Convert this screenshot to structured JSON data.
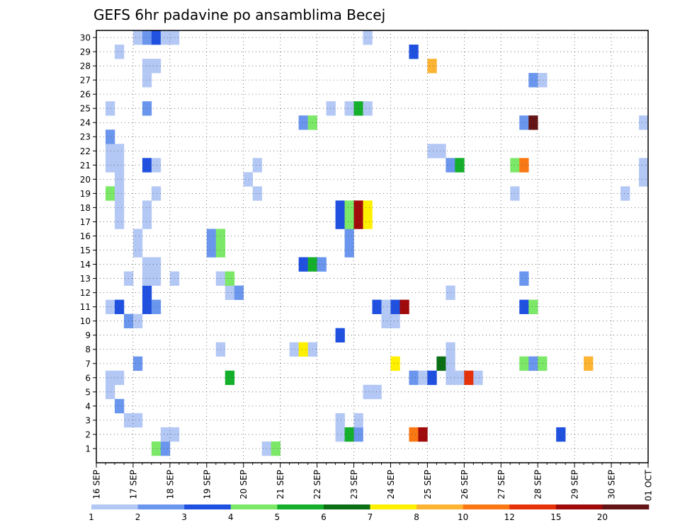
{
  "chart_data": {
    "type": "heatmap",
    "title": "GEFS 6hr padavine po ansamblima Becej",
    "xlabel": "",
    "ylabel": "",
    "x_ticks": [
      "16 SEP",
      "17 SEP",
      "18 SEP",
      "19 SEP",
      "20 SEP",
      "21 SEP",
      "22 SEP",
      "23 SEP",
      "24 SEP",
      "25 SEP",
      "26 SEP",
      "27 SEP",
      "28 SEP",
      "29 SEP",
      "30 SEP",
      "01 OCT"
    ],
    "y_ticks": [
      "1",
      "2",
      "3",
      "4",
      "5",
      "6",
      "7",
      "8",
      "9",
      "10",
      "11",
      "12",
      "13",
      "14",
      "15",
      "16",
      "17",
      "18",
      "19",
      "20",
      "21",
      "22",
      "23",
      "24",
      "25",
      "26",
      "27",
      "28",
      "29",
      "30"
    ],
    "x_range": [
      "16 SEP 00Z",
      "01 OCT 00Z"
    ],
    "x_step": "6hr",
    "y_range": [
      1,
      30
    ],
    "grid": true,
    "color_scale": {
      "boundaries": [
        "1",
        "2",
        "3",
        "4",
        "5",
        "6",
        "7",
        "8",
        "10",
        "12",
        "15",
        "20"
      ],
      "colors": [
        "#b4c8f5",
        "#6b96ee",
        "#1f50e0",
        "#7ce868",
        "#14b02c",
        "#0a6e14",
        "#fff000",
        "#fcb432",
        "#fa7814",
        "#e6320a",
        "#a00a0a",
        "#641414"
      ]
    },
    "values": [
      {
        "ens": 1,
        "t": "17 SEP 18Z",
        "v": 4.4
      },
      {
        "ens": 1,
        "t": "18 SEP 00Z",
        "v": 2.5
      },
      {
        "ens": 1,
        "t": "20 SEP 18Z",
        "v": 1.5
      },
      {
        "ens": 1,
        "t": "21 SEP 00Z",
        "v": 4.4
      },
      {
        "ens": 2,
        "t": "18 SEP 00Z",
        "v": 1.5
      },
      {
        "ens": 2,
        "t": "18 SEP 06Z",
        "v": 1.5
      },
      {
        "ens": 2,
        "t": "22 SEP 18Z",
        "v": 1.5
      },
      {
        "ens": 2,
        "t": "23 SEP 00Z",
        "v": 5.5
      },
      {
        "ens": 2,
        "t": "23 SEP 06Z",
        "v": 2.5
      },
      {
        "ens": 2,
        "t": "24 SEP 18Z",
        "v": 11
      },
      {
        "ens": 2,
        "t": "25 SEP 00Z",
        "v": 17
      },
      {
        "ens": 2,
        "t": "28 SEP 18Z",
        "v": 3.5
      },
      {
        "ens": 3,
        "t": "17 SEP 00Z",
        "v": 1.5
      },
      {
        "ens": 3,
        "t": "17 SEP 06Z",
        "v": 1.5
      },
      {
        "ens": 3,
        "t": "22 SEP 18Z",
        "v": 1.5
      },
      {
        "ens": 3,
        "t": "23 SEP 06Z",
        "v": 1.5
      },
      {
        "ens": 4,
        "t": "16 SEP 18Z",
        "v": 2.5
      },
      {
        "ens": 5,
        "t": "16 SEP 12Z",
        "v": 1.5
      },
      {
        "ens": 5,
        "t": "23 SEP 12Z",
        "v": 1.5
      },
      {
        "ens": 5,
        "t": "23 SEP 18Z",
        "v": 1.5
      },
      {
        "ens": 6,
        "t": "16 SEP 12Z",
        "v": 1.5
      },
      {
        "ens": 6,
        "t": "16 SEP 18Z",
        "v": 1.5
      },
      {
        "ens": 6,
        "t": "19 SEP 18Z",
        "v": 5.5
      },
      {
        "ens": 6,
        "t": "24 SEP 18Z",
        "v": 2.5
      },
      {
        "ens": 6,
        "t": "25 SEP 00Z",
        "v": 1.5
      },
      {
        "ens": 6,
        "t": "25 SEP 06Z",
        "v": 3.5
      },
      {
        "ens": 6,
        "t": "25 SEP 18Z",
        "v": 1.5
      },
      {
        "ens": 6,
        "t": "26 SEP 00Z",
        "v": 1.5
      },
      {
        "ens": 6,
        "t": "26 SEP 06Z",
        "v": 13
      },
      {
        "ens": 6,
        "t": "26 SEP 12Z",
        "v": 1.5
      },
      {
        "ens": 7,
        "t": "17 SEP 06Z",
        "v": 2.5
      },
      {
        "ens": 7,
        "t": "24 SEP 06Z",
        "v": 7.5
      },
      {
        "ens": 7,
        "t": "25 SEP 12Z",
        "v": 6.5
      },
      {
        "ens": 7,
        "t": "25 SEP 18Z",
        "v": 1.5
      },
      {
        "ens": 7,
        "t": "27 SEP 18Z",
        "v": 4.5
      },
      {
        "ens": 7,
        "t": "28 SEP 00Z",
        "v": 2.5
      },
      {
        "ens": 7,
        "t": "28 SEP 06Z",
        "v": 4.5
      },
      {
        "ens": 7,
        "t": "29 SEP 12Z",
        "v": 9
      },
      {
        "ens": 8,
        "t": "19 SEP 12Z",
        "v": 1.5
      },
      {
        "ens": 8,
        "t": "21 SEP 12Z",
        "v": 1.5
      },
      {
        "ens": 8,
        "t": "21 SEP 18Z",
        "v": 7.5
      },
      {
        "ens": 8,
        "t": "22 SEP 00Z",
        "v": 1.5
      },
      {
        "ens": 8,
        "t": "25 SEP 18Z",
        "v": 1.5
      },
      {
        "ens": 9,
        "t": "22 SEP 18Z",
        "v": 3.5
      },
      {
        "ens": 10,
        "t": "17 SEP 00Z",
        "v": 2.5
      },
      {
        "ens": 10,
        "t": "17 SEP 06Z",
        "v": 1.5
      },
      {
        "ens": 10,
        "t": "24 SEP 00Z",
        "v": 1.5
      },
      {
        "ens": 10,
        "t": "24 SEP 06Z",
        "v": 1.5
      },
      {
        "ens": 11,
        "t": "16 SEP 12Z",
        "v": 1.5
      },
      {
        "ens": 11,
        "t": "16 SEP 18Z",
        "v": 3.5
      },
      {
        "ens": 11,
        "t": "17 SEP 12Z",
        "v": 3.5
      },
      {
        "ens": 11,
        "t": "17 SEP 18Z",
        "v": 2.5
      },
      {
        "ens": 11,
        "t": "23 SEP 18Z",
        "v": 3.5
      },
      {
        "ens": 11,
        "t": "24 SEP 00Z",
        "v": 1.5
      },
      {
        "ens": 11,
        "t": "24 SEP 06Z",
        "v": 3.5
      },
      {
        "ens": 11,
        "t": "24 SEP 12Z",
        "v": 17
      },
      {
        "ens": 11,
        "t": "27 SEP 18Z",
        "v": 3.5
      },
      {
        "ens": 11,
        "t": "28 SEP 00Z",
        "v": 4.5
      },
      {
        "ens": 12,
        "t": "17 SEP 12Z",
        "v": 3.5
      },
      {
        "ens": 12,
        "t": "19 SEP 18Z",
        "v": 1.5
      },
      {
        "ens": 12,
        "t": "20 SEP 00Z",
        "v": 2.5
      },
      {
        "ens": 12,
        "t": "25 SEP 18Z",
        "v": 1.5
      },
      {
        "ens": 13,
        "t": "17 SEP 00Z",
        "v": 1.5
      },
      {
        "ens": 13,
        "t": "17 SEP 12Z",
        "v": 1.5
      },
      {
        "ens": 13,
        "t": "17 SEP 18Z",
        "v": 1.5
      },
      {
        "ens": 13,
        "t": "18 SEP 06Z",
        "v": 1.5
      },
      {
        "ens": 13,
        "t": "19 SEP 12Z",
        "v": 1.5
      },
      {
        "ens": 13,
        "t": "19 SEP 18Z",
        "v": 4.5
      },
      {
        "ens": 13,
        "t": "27 SEP 18Z",
        "v": 2.5
      },
      {
        "ens": 14,
        "t": "17 SEP 12Z",
        "v": 1.5
      },
      {
        "ens": 14,
        "t": "17 SEP 18Z",
        "v": 1.5
      },
      {
        "ens": 14,
        "t": "21 SEP 18Z",
        "v": 3.5
      },
      {
        "ens": 14,
        "t": "22 SEP 00Z",
        "v": 5.5
      },
      {
        "ens": 14,
        "t": "22 SEP 06Z",
        "v": 2.5
      },
      {
        "ens": 15,
        "t": "17 SEP 06Z",
        "v": 1.5
      },
      {
        "ens": 15,
        "t": "19 SEP 06Z",
        "v": 2.5
      },
      {
        "ens": 15,
        "t": "19 SEP 12Z",
        "v": 4.5
      },
      {
        "ens": 15,
        "t": "23 SEP 00Z",
        "v": 2.5
      },
      {
        "ens": 16,
        "t": "17 SEP 06Z",
        "v": 1.5
      },
      {
        "ens": 16,
        "t": "19 SEP 06Z",
        "v": 2.5
      },
      {
        "ens": 16,
        "t": "19 SEP 12Z",
        "v": 4.5
      },
      {
        "ens": 16,
        "t": "23 SEP 00Z",
        "v": 2.5
      },
      {
        "ens": 17,
        "t": "16 SEP 18Z",
        "v": 1.5
      },
      {
        "ens": 17,
        "t": "17 SEP 12Z",
        "v": 1.5
      },
      {
        "ens": 17,
        "t": "22 SEP 18Z",
        "v": 3.5
      },
      {
        "ens": 17,
        "t": "23 SEP 00Z",
        "v": 4.5
      },
      {
        "ens": 17,
        "t": "23 SEP 06Z",
        "v": 17
      },
      {
        "ens": 17,
        "t": "23 SEP 12Z",
        "v": 7.5
      },
      {
        "ens": 18,
        "t": "16 SEP 18Z",
        "v": 1.5
      },
      {
        "ens": 18,
        "t": "17 SEP 12Z",
        "v": 1.5
      },
      {
        "ens": 18,
        "t": "22 SEP 18Z",
        "v": 3.5
      },
      {
        "ens": 18,
        "t": "23 SEP 00Z",
        "v": 4.5
      },
      {
        "ens": 18,
        "t": "23 SEP 06Z",
        "v": 17
      },
      {
        "ens": 18,
        "t": "23 SEP 12Z",
        "v": 7.5
      },
      {
        "ens": 19,
        "t": "16 SEP 12Z",
        "v": 4.5
      },
      {
        "ens": 19,
        "t": "16 SEP 18Z",
        "v": 1.5
      },
      {
        "ens": 19,
        "t": "17 SEP 18Z",
        "v": 1.5
      },
      {
        "ens": 19,
        "t": "20 SEP 12Z",
        "v": 1.5
      },
      {
        "ens": 19,
        "t": "27 SEP 12Z",
        "v": 1.5
      },
      {
        "ens": 19,
        "t": "30 SEP 12Z",
        "v": 1.5
      },
      {
        "ens": 20,
        "t": "16 SEP 18Z",
        "v": 1.5
      },
      {
        "ens": 20,
        "t": "20 SEP 06Z",
        "v": 1.5
      },
      {
        "ens": 20,
        "t": "01 OCT 00Z",
        "v": 1.5
      },
      {
        "ens": 21,
        "t": "16 SEP 12Z",
        "v": 1.5
      },
      {
        "ens": 21,
        "t": "16 SEP 18Z",
        "v": 1.5
      },
      {
        "ens": 21,
        "t": "17 SEP 12Z",
        "v": 3.5
      },
      {
        "ens": 21,
        "t": "17 SEP 18Z",
        "v": 1.5
      },
      {
        "ens": 21,
        "t": "20 SEP 12Z",
        "v": 1.5
      },
      {
        "ens": 21,
        "t": "25 SEP 18Z",
        "v": 2.5
      },
      {
        "ens": 21,
        "t": "26 SEP 00Z",
        "v": 5.5
      },
      {
        "ens": 21,
        "t": "27 SEP 12Z",
        "v": 4.5
      },
      {
        "ens": 21,
        "t": "27 SEP 18Z",
        "v": 11
      },
      {
        "ens": 21,
        "t": "01 OCT 00Z",
        "v": 1.5
      },
      {
        "ens": 22,
        "t": "16 SEP 12Z",
        "v": 1.5
      },
      {
        "ens": 22,
        "t": "16 SEP 18Z",
        "v": 1.5
      },
      {
        "ens": 22,
        "t": "25 SEP 06Z",
        "v": 1.5
      },
      {
        "ens": 22,
        "t": "25 SEP 12Z",
        "v": 1.5
      },
      {
        "ens": 23,
        "t": "16 SEP 12Z",
        "v": 2.5
      },
      {
        "ens": 24,
        "t": "21 SEP 18Z",
        "v": 2.5
      },
      {
        "ens": 24,
        "t": "22 SEP 00Z",
        "v": 4.5
      },
      {
        "ens": 24,
        "t": "27 SEP 18Z",
        "v": 2.5
      },
      {
        "ens": 24,
        "t": "28 SEP 00Z",
        "v": 25
      },
      {
        "ens": 24,
        "t": "01 OCT 00Z",
        "v": 1.5
      },
      {
        "ens": 25,
        "t": "16 SEP 12Z",
        "v": 1.5
      },
      {
        "ens": 25,
        "t": "17 SEP 12Z",
        "v": 2.5
      },
      {
        "ens": 25,
        "t": "22 SEP 12Z",
        "v": 1.5
      },
      {
        "ens": 25,
        "t": "23 SEP 00Z",
        "v": 1.5
      },
      {
        "ens": 25,
        "t": "23 SEP 06Z",
        "v": 5.5
      },
      {
        "ens": 25,
        "t": "23 SEP 12Z",
        "v": 1.5
      },
      {
        "ens": 27,
        "t": "17 SEP 12Z",
        "v": 1.5
      },
      {
        "ens": 27,
        "t": "28 SEP 00Z",
        "v": 2.5
      },
      {
        "ens": 27,
        "t": "28 SEP 06Z",
        "v": 1.5
      },
      {
        "ens": 28,
        "t": "17 SEP 12Z",
        "v": 1.5
      },
      {
        "ens": 28,
        "t": "17 SEP 18Z",
        "v": 1.5
      },
      {
        "ens": 28,
        "t": "25 SEP 06Z",
        "v": 9
      },
      {
        "ens": 29,
        "t": "16 SEP 18Z",
        "v": 1.5
      },
      {
        "ens": 29,
        "t": "24 SEP 18Z",
        "v": 3.5
      },
      {
        "ens": 30,
        "t": "17 SEP 06Z",
        "v": 1.5
      },
      {
        "ens": 30,
        "t": "17 SEP 12Z",
        "v": 2.5
      },
      {
        "ens": 30,
        "t": "17 SEP 18Z",
        "v": 3.5
      },
      {
        "ens": 30,
        "t": "18 SEP 00Z",
        "v": 1.5
      },
      {
        "ens": 30,
        "t": "18 SEP 06Z",
        "v": 1.5
      },
      {
        "ens": 30,
        "t": "23 SEP 12Z",
        "v": 1.5
      }
    ]
  }
}
